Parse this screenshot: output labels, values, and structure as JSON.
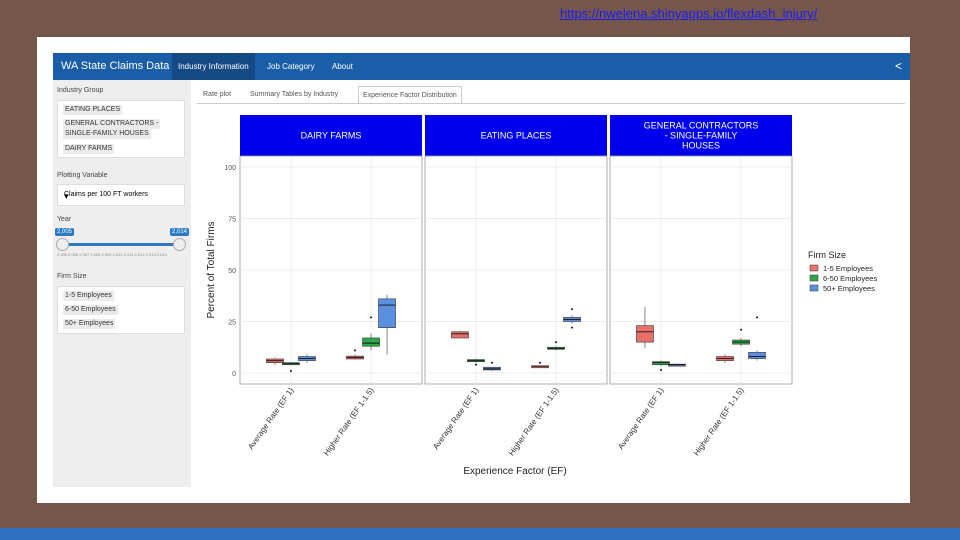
{
  "url": "https://nwelena.shinyapps.io/flexdash_injury/",
  "navbar": {
    "title": "WA State Claims Data",
    "tabs": [
      "Industry Information",
      "Job Category",
      "About"
    ]
  },
  "sidebar": {
    "industry_label": "Industry Group",
    "industries": [
      "EATING PLACES",
      "GENERAL CONTRACTORS -",
      "SINGLE-FAMILY HOUSES",
      "DAIRY FARMS"
    ],
    "plot_var_label": "Plotting Variable",
    "plot_var_value": "Claims per 100 FT workers",
    "year_label": "Year",
    "year_min": "2,005",
    "year_max": "2,014",
    "year_ticks": "2,005   2,006  2,007  2,008  2,009  2,010  2,011  2,012  2,013  2,014",
    "firm_size_label": "Firm Size",
    "firm_sizes": [
      "1-5 Employees",
      "6-50 Employees",
      "50+ Employees"
    ]
  },
  "subtabs": [
    "Rate plot",
    "Summary Tables by Industry",
    "Experience Factor Distribution"
  ],
  "colors": {
    "s1": "#e8706a",
    "s2": "#2ea84a",
    "s3": "#5b8fe0",
    "strip": "#0000ee"
  },
  "chart_data": {
    "type": "box",
    "ylabel": "Percent of Total Firms",
    "xlabel": "Experience Factor (EF)",
    "ylim": [
      0,
      100
    ],
    "yticks": [
      0,
      25,
      50,
      75,
      100
    ],
    "categories": [
      "Average Rate (EF 1)",
      "Higher Rate (EF 1-1.5)"
    ],
    "legend_title": "Firm Size",
    "legend": [
      "1-5 Employees",
      "6-50 Employees",
      "50+ Employees"
    ],
    "panels": [
      {
        "title": [
          "DAIRY FARMS"
        ],
        "boxes": [
          {
            "cat": 0,
            "s": 0,
            "q1": 5,
            "med": 6,
            "q3": 6.8,
            "lo": 4,
            "hi": 7.5,
            "out": []
          },
          {
            "cat": 0,
            "s": 1,
            "q1": 4,
            "med": 4.5,
            "q3": 5,
            "lo": 4,
            "hi": 5,
            "out": [
              1
            ]
          },
          {
            "cat": 0,
            "s": 2,
            "q1": 6,
            "med": 7,
            "q3": 8,
            "lo": 5,
            "hi": 9,
            "out": []
          },
          {
            "cat": 1,
            "s": 0,
            "q1": 6.8,
            "med": 7.5,
            "q3": 8.2,
            "lo": 6.5,
            "hi": 9,
            "out": [
              11
            ]
          },
          {
            "cat": 1,
            "s": 1,
            "q1": 13,
            "med": 14.5,
            "q3": 17,
            "lo": 11,
            "hi": 19,
            "out": [
              27
            ]
          },
          {
            "cat": 1,
            "s": 2,
            "q1": 22,
            "med": 33,
            "q3": 36,
            "lo": 9,
            "hi": 38,
            "out": []
          }
        ]
      },
      {
        "title": [
          "EATING PLACES"
        ],
        "boxes": [
          {
            "cat": 0,
            "s": 0,
            "q1": 17,
            "med": 19,
            "q3": 20,
            "lo": 17,
            "hi": 20.5,
            "out": []
          },
          {
            "cat": 0,
            "s": 1,
            "q1": 5.5,
            "med": 6,
            "q3": 6.5,
            "lo": 5,
            "hi": 7,
            "out": [
              4
            ]
          },
          {
            "cat": 0,
            "s": 2,
            "q1": 1.5,
            "med": 2,
            "q3": 2.8,
            "lo": 1,
            "hi": 3,
            "out": [
              5
            ]
          },
          {
            "cat": 1,
            "s": 0,
            "q1": 3,
            "med": 3.3,
            "q3": 3.5,
            "lo": 3,
            "hi": 3.5,
            "out": [
              5
            ]
          },
          {
            "cat": 1,
            "s": 1,
            "q1": 11.5,
            "med": 12,
            "q3": 12.5,
            "lo": 11,
            "hi": 13,
            "out": [
              15
            ]
          },
          {
            "cat": 1,
            "s": 2,
            "q1": 25,
            "med": 26,
            "q3": 27,
            "lo": 24,
            "hi": 28,
            "out": [
              22,
              31
            ]
          }
        ]
      },
      {
        "title": [
          "GENERAL CONTRACTORS",
          "- SINGLE-FAMILY",
          "HOUSES"
        ],
        "boxes": [
          {
            "cat": 0,
            "s": 0,
            "q1": 15,
            "med": 20,
            "q3": 23,
            "lo": 12,
            "hi": 32,
            "out": []
          },
          {
            "cat": 0,
            "s": 1,
            "q1": 4,
            "med": 5,
            "q3": 5.5,
            "lo": 3.5,
            "hi": 6,
            "out": [
              1.5
            ]
          },
          {
            "cat": 0,
            "s": 2,
            "q1": 3.5,
            "med": 4,
            "q3": 4.3,
            "lo": 3.5,
            "hi": 4.5,
            "out": []
          },
          {
            "cat": 1,
            "s": 0,
            "q1": 6,
            "med": 7,
            "q3": 8,
            "lo": 5,
            "hi": 9,
            "out": []
          },
          {
            "cat": 1,
            "s": 1,
            "q1": 14,
            "med": 15,
            "q3": 16,
            "lo": 13,
            "hi": 17,
            "out": [
              21
            ]
          },
          {
            "cat": 1,
            "s": 2,
            "q1": 7,
            "med": 8,
            "q3": 10,
            "lo": 6,
            "hi": 11,
            "out": [
              27
            ]
          }
        ]
      }
    ]
  }
}
